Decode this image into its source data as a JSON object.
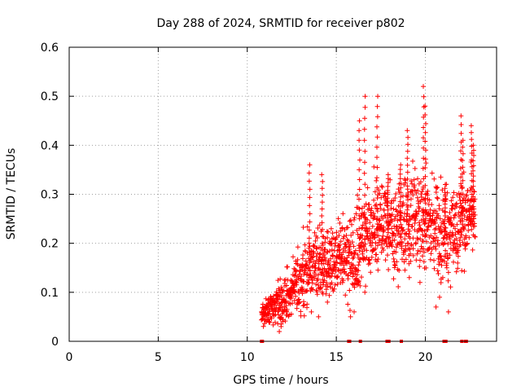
{
  "chart_data": {
    "type": "scatter",
    "title": "Day 288 of 2024, SRMTID for receiver p802",
    "xlabel": "GPS time / hours",
    "ylabel": "SRMTID / TECUs",
    "xlim": [
      0,
      24
    ],
    "ylim": [
      0,
      0.6
    ],
    "xticks": [
      0,
      5,
      10,
      15,
      20
    ],
    "yticks": [
      0,
      0.1,
      0.2,
      0.3,
      0.4,
      0.5,
      0.6
    ],
    "ytick_labels": [
      "0",
      "0.1",
      "0.2",
      "0.3",
      "0.4",
      "0.5",
      "0.6"
    ],
    "grid": true,
    "marker": "+",
    "color": "#ff0000",
    "trend": {
      "x": [
        10.8,
        11.3,
        11.8,
        12.3,
        12.8,
        13.3,
        13.8,
        14.3,
        14.8,
        15.3,
        15.8,
        16.3,
        16.8,
        17.3,
        17.8,
        18.3,
        18.8,
        19.3,
        19.8,
        20.3,
        20.8,
        21.3,
        21.8,
        22.3,
        22.8
      ],
      "y": [
        0.05,
        0.07,
        0.08,
        0.09,
        0.12,
        0.14,
        0.15,
        0.16,
        0.17,
        0.18,
        0.16,
        0.19,
        0.22,
        0.23,
        0.24,
        0.22,
        0.25,
        0.24,
        0.25,
        0.24,
        0.21,
        0.22,
        0.22,
        0.24,
        0.27
      ]
    },
    "spread": {
      "x": [
        10.8,
        11.3,
        11.8,
        12.3,
        12.8,
        13.3,
        13.8,
        14.3,
        14.8,
        15.3,
        15.8,
        16.3,
        16.8,
        17.3,
        17.8,
        18.3,
        18.8,
        19.3,
        19.8,
        20.3,
        20.8,
        21.3,
        21.8,
        22.3,
        22.8
      ],
      "y": [
        0.02,
        0.03,
        0.04,
        0.04,
        0.05,
        0.06,
        0.06,
        0.07,
        0.07,
        0.06,
        0.07,
        0.08,
        0.08,
        0.08,
        0.07,
        0.08,
        0.08,
        0.08,
        0.09,
        0.08,
        0.08,
        0.08,
        0.08,
        0.07,
        0.06
      ]
    },
    "n_points": 1400,
    "peaks": {
      "x": [
        13.5,
        14.2,
        16.3,
        16.6,
        17.3,
        17.9,
        18.6,
        19.0,
        19.9,
        20.0,
        21.1,
        22.0,
        22.1,
        22.6,
        22.7
      ],
      "y": [
        0.36,
        0.34,
        0.45,
        0.5,
        0.5,
        0.34,
        0.36,
        0.43,
        0.52,
        0.48,
        0.32,
        0.46,
        0.41,
        0.44,
        0.4
      ]
    },
    "outliers": {
      "x": [
        11.8,
        11.9,
        12.2,
        12.6,
        13.6,
        14.0,
        14.5,
        15.8,
        16.0,
        19.1,
        19.7,
        20.6,
        20.8,
        21.3
      ],
      "y": [
        0.02,
        0.03,
        0.06,
        0.11,
        0.06,
        0.05,
        0.08,
        0.05,
        0.06,
        0.13,
        0.12,
        0.07,
        0.09,
        0.06
      ]
    },
    "baseline": {
      "y": 0,
      "x": [
        10.8,
        10.85,
        15.7,
        15.75,
        16.35,
        17.85,
        17.9,
        17.95,
        18.65,
        21.05,
        21.15,
        22.05,
        22.25,
        22.3
      ]
    }
  }
}
